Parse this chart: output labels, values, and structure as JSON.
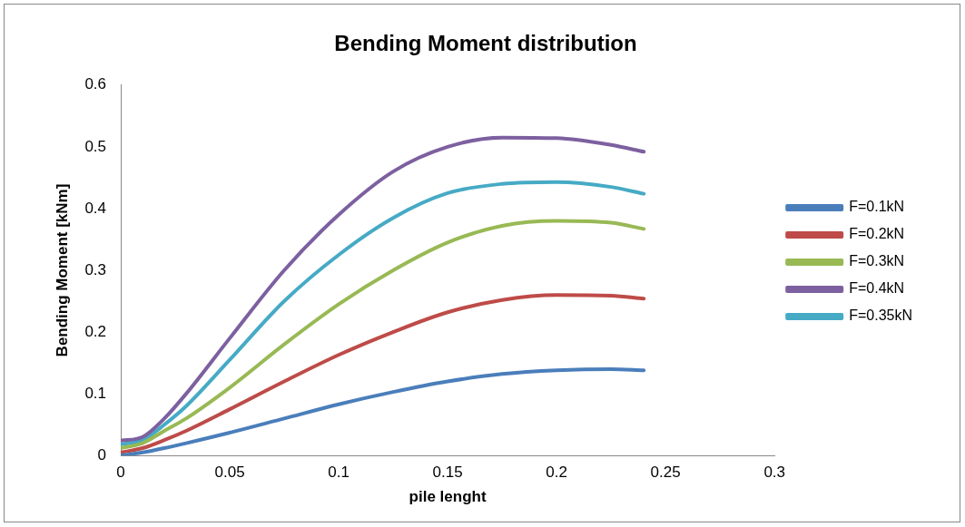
{
  "chart_data": {
    "type": "line",
    "title": "Bending Moment distribution",
    "xlabel": "pile lenght",
    "ylabel": "Bending Moment [kNm]",
    "x": [
      0,
      0.01,
      0.02,
      0.03,
      0.05,
      0.075,
      0.1,
      0.125,
      0.15,
      0.175,
      0.2,
      0.225,
      0.24
    ],
    "xlim": [
      0,
      0.3
    ],
    "xticks": [
      0,
      0.05,
      0.1,
      0.15,
      0.2,
      0.25,
      0.3
    ],
    "ylim": [
      0,
      0.6
    ],
    "yticks": [
      0,
      0.1,
      0.2,
      0.3,
      0.4,
      0.5,
      0.6
    ],
    "grid": false,
    "legend": "right",
    "marker": "none",
    "line_style": "solid",
    "series": [
      {
        "name": "F=0.1kN",
        "color": "#4a7ebb",
        "values": [
          0,
          0.005,
          0.012,
          0.02,
          0.037,
          0.06,
          0.083,
          0.103,
          0.12,
          0.132,
          0.138,
          0.14,
          0.138
        ]
      },
      {
        "name": "F=0.2kN",
        "color": "#be4b48",
        "values": [
          0.005,
          0.012,
          0.025,
          0.04,
          0.075,
          0.12,
          0.163,
          0.2,
          0.232,
          0.252,
          0.26,
          0.259,
          0.254
        ]
      },
      {
        "name": "F=0.3kN",
        "color": "#98b954",
        "values": [
          0.012,
          0.02,
          0.04,
          0.06,
          0.11,
          0.18,
          0.245,
          0.3,
          0.345,
          0.372,
          0.38,
          0.377,
          0.367
        ]
      },
      {
        "name": "F=0.4kN",
        "color": "#7d60a0",
        "values": [
          0.024,
          0.03,
          0.06,
          0.1,
          0.19,
          0.3,
          0.39,
          0.46,
          0.5,
          0.515,
          0.514,
          0.503,
          0.492
        ]
      },
      {
        "name": "F=0.35kN",
        "color": "#46aac5",
        "values": [
          0.018,
          0.025,
          0.05,
          0.08,
          0.155,
          0.25,
          0.325,
          0.385,
          0.425,
          0.44,
          0.443,
          0.435,
          0.424
        ]
      }
    ]
  }
}
